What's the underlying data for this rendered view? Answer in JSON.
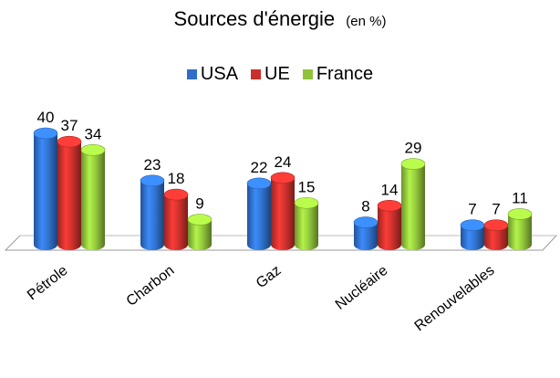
{
  "chart_data": {
    "type": "bar",
    "title": "Sources d'énergie",
    "subtitle": "(en %)",
    "categories": [
      "Pétrole",
      "Charbon",
      "Gaz",
      "Nucléaire",
      "Renouvelables"
    ],
    "series": [
      {
        "name": "USA",
        "values": [
          40,
          23,
          22,
          8,
          7
        ],
        "color": "#2f6fc9"
      },
      {
        "name": "UE",
        "values": [
          37,
          18,
          24,
          14,
          7
        ],
        "color": "#c9302c"
      },
      {
        "name": "France",
        "values": [
          34,
          9,
          15,
          29,
          11
        ],
        "color": "#8fc23a"
      }
    ],
    "ylim": [
      0,
      40
    ],
    "legend_position": "top",
    "grid": false,
    "data_labels": true,
    "style": "3d-cylinder"
  }
}
